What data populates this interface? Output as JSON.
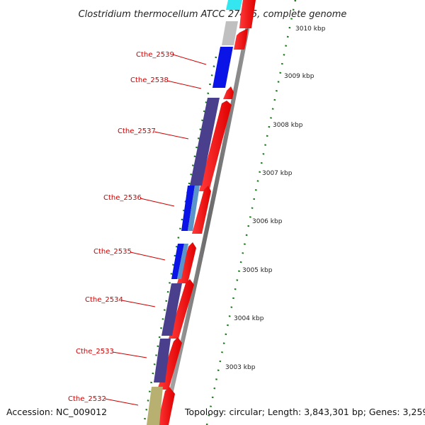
{
  "title": "Clostridium thermocellum ATCC 27405, complete genome",
  "footer": {
    "accession": "Accession: NC_009012",
    "topology": "Topology: circular; Length: 3,843,301 bp; Genes: 3,259"
  },
  "genes": [
    {
      "label": "Cthe_2539"
    },
    {
      "label": "Cthe_2538"
    },
    {
      "label": "Cthe_2537"
    },
    {
      "label": "Cthe_2536"
    },
    {
      "label": "Cthe_2535"
    },
    {
      "label": "Cthe_2534"
    },
    {
      "label": "Cthe_2533"
    },
    {
      "label": "Cthe_2532"
    }
  ],
  "scale_ticks": [
    {
      "label": "3010 kbp"
    },
    {
      "label": "3009 kbp"
    },
    {
      "label": "3008 kbp"
    },
    {
      "label": "3007 kbp"
    },
    {
      "label": "3006 kbp"
    },
    {
      "label": "3005 kbp"
    },
    {
      "label": "3004 kbp"
    },
    {
      "label": "3003 kbp"
    }
  ],
  "colors": {
    "forward_cds": "#ff0000",
    "reverse_cds_blue": "#0a14e6",
    "reverse_cds_purple": "#4a3f8c",
    "reverse_cds_gray": "#c0c0c0",
    "reverse_cds_cyan": "#33e6f0",
    "reverse_cds_olive": "#b8b070",
    "rrna_light_blue": "#5a94c8",
    "backbone": "#808080",
    "tick_green": "#1a7a1a",
    "label_red": "#cc0000"
  }
}
